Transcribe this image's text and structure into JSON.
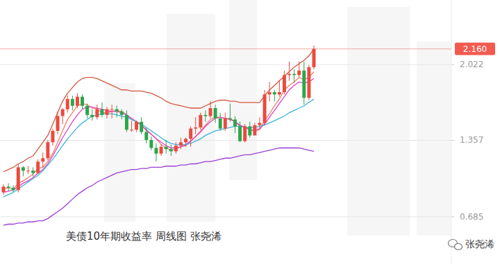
{
  "chart_data": {
    "type": "candlestick",
    "title": "美债10年期收益率 周线图 张尧浠",
    "watermark": "张尧浠",
    "categories": [
      null,
      null,
      null,
      null,
      null,
      null,
      null,
      null,
      null,
      null,
      null,
      null,
      null,
      null,
      null,
      null,
      null,
      null,
      null,
      null,
      null,
      null,
      null,
      null,
      null,
      null,
      null,
      null,
      null,
      null,
      null,
      null,
      null,
      null,
      null,
      null,
      null,
      null,
      null,
      null,
      null,
      null,
      null,
      null,
      null,
      null,
      null,
      null,
      null,
      null,
      null,
      null,
      null,
      null,
      null,
      null,
      null,
      null,
      null,
      null,
      null,
      null,
      null,
      null
    ],
    "open": [
      0.9,
      0.95,
      0.94,
      0.92,
      1.12,
      1.09,
      1.09,
      1.07,
      1.17,
      1.2,
      1.34,
      1.44,
      1.57,
      1.63,
      1.72,
      1.66,
      1.74,
      1.66,
      1.58,
      1.56,
      1.63,
      1.58,
      1.63,
      1.63,
      1.61,
      1.58,
      1.45,
      1.45,
      1.52,
      1.43,
      1.36,
      1.29,
      1.24,
      1.3,
      1.28,
      1.26,
      1.31,
      1.34,
      1.37,
      1.46,
      1.47,
      1.58,
      1.57,
      1.64,
      1.55,
      1.46,
      1.55,
      1.54,
      1.48,
      1.35,
      1.48,
      1.4,
      1.49,
      1.51,
      1.76,
      1.78,
      1.76,
      1.78,
      1.93,
      1.94,
      1.93,
      1.97,
      1.73,
      2.0
    ],
    "high": [
      0.97,
      0.98,
      0.96,
      1.15,
      1.13,
      1.13,
      1.12,
      1.19,
      1.25,
      1.36,
      1.46,
      1.61,
      1.64,
      1.75,
      1.75,
      1.77,
      1.76,
      1.68,
      1.63,
      1.67,
      1.69,
      1.65,
      1.67,
      1.66,
      1.63,
      1.62,
      1.53,
      1.53,
      1.56,
      1.47,
      1.39,
      1.33,
      1.32,
      1.36,
      1.32,
      1.34,
      1.38,
      1.38,
      1.48,
      1.56,
      1.6,
      1.62,
      1.7,
      1.67,
      1.6,
      1.6,
      1.68,
      1.57,
      1.52,
      1.5,
      1.52,
      1.51,
      1.56,
      1.8,
      1.87,
      1.8,
      1.88,
      1.97,
      2.05,
      1.98,
      2.05,
      2.05,
      2.02,
      2.19
    ],
    "low": [
      0.88,
      0.91,
      0.9,
      0.9,
      1.04,
      1.06,
      1.04,
      1.06,
      1.12,
      1.18,
      1.31,
      1.41,
      1.5,
      1.6,
      1.62,
      1.64,
      1.63,
      1.55,
      1.53,
      1.54,
      1.56,
      1.55,
      1.55,
      1.56,
      1.54,
      1.43,
      1.43,
      1.43,
      1.41,
      1.33,
      1.27,
      1.17,
      1.22,
      1.24,
      1.22,
      1.24,
      1.28,
      1.3,
      1.3,
      1.41,
      1.45,
      1.52,
      1.55,
      1.51,
      1.44,
      1.44,
      1.52,
      1.42,
      1.34,
      1.34,
      1.38,
      1.4,
      1.46,
      1.49,
      1.7,
      1.7,
      1.74,
      1.76,
      1.88,
      1.86,
      1.91,
      1.67,
      1.71,
      1.98
    ],
    "close": [
      0.95,
      0.94,
      0.92,
      1.12,
      1.09,
      1.09,
      1.07,
      1.17,
      1.2,
      1.34,
      1.44,
      1.57,
      1.63,
      1.72,
      1.66,
      1.74,
      1.66,
      1.58,
      1.56,
      1.63,
      1.58,
      1.63,
      1.63,
      1.61,
      1.58,
      1.45,
      1.45,
      1.52,
      1.43,
      1.36,
      1.29,
      1.24,
      1.3,
      1.28,
      1.26,
      1.31,
      1.34,
      1.37,
      1.46,
      1.47,
      1.58,
      1.57,
      1.64,
      1.55,
      1.46,
      1.55,
      1.54,
      1.48,
      1.35,
      1.48,
      1.4,
      1.49,
      1.51,
      1.76,
      1.78,
      1.76,
      1.78,
      1.93,
      1.94,
      1.93,
      1.97,
      1.73,
      2.0,
      2.16
    ],
    "series": [
      {
        "type": "line",
        "color": "#d4573f",
        "values": [
          1.08,
          1.1,
          1.12,
          1.15,
          1.17,
          1.2,
          1.22,
          1.28,
          1.34,
          1.4,
          1.5,
          1.6,
          1.7,
          1.77,
          1.82,
          1.87,
          1.9,
          1.91,
          1.91,
          1.9,
          1.88,
          1.86,
          1.84,
          1.82,
          1.8,
          1.8,
          1.79,
          1.79,
          1.79,
          1.78,
          1.77,
          1.75,
          1.73,
          1.7,
          1.68,
          1.67,
          1.66,
          1.65,
          1.64,
          1.64,
          1.64,
          1.66,
          1.68,
          1.7,
          1.71,
          1.71,
          1.7,
          1.7,
          1.69,
          1.69,
          1.69,
          1.69,
          1.69,
          1.75,
          1.8,
          1.84,
          1.88,
          1.92,
          1.96,
          2.0,
          2.03,
          2.06,
          2.1,
          2.16
        ]
      },
      {
        "type": "line",
        "color": "#f27d6c",
        "values": [
          0.93,
          0.94,
          0.93,
          0.98,
          1.0,
          1.03,
          1.06,
          1.11,
          1.12,
          1.17,
          1.24,
          1.34,
          1.44,
          1.54,
          1.6,
          1.66,
          1.68,
          1.67,
          1.64,
          1.63,
          1.6,
          1.6,
          1.61,
          1.62,
          1.61,
          1.58,
          1.54,
          1.52,
          1.49,
          1.44,
          1.41,
          1.37,
          1.32,
          1.29,
          1.27,
          1.28,
          1.3,
          1.31,
          1.35,
          1.39,
          1.44,
          1.49,
          1.54,
          1.56,
          1.56,
          1.55,
          1.55,
          1.52,
          1.48,
          1.48,
          1.45,
          1.44,
          1.45,
          1.53,
          1.59,
          1.66,
          1.72,
          1.8,
          1.84,
          1.87,
          1.91,
          1.89,
          1.91,
          1.96
        ]
      },
      {
        "type": "line",
        "color": "#e23fc6",
        "values": [
          0.9,
          0.91,
          0.92,
          0.95,
          0.98,
          1.0,
          1.03,
          1.07,
          1.1,
          1.15,
          1.22,
          1.3,
          1.38,
          1.45,
          1.52,
          1.58,
          1.63,
          1.65,
          1.65,
          1.64,
          1.63,
          1.62,
          1.61,
          1.61,
          1.6,
          1.58,
          1.55,
          1.52,
          1.49,
          1.45,
          1.41,
          1.37,
          1.34,
          1.31,
          1.29,
          1.29,
          1.3,
          1.32,
          1.35,
          1.39,
          1.43,
          1.48,
          1.52,
          1.55,
          1.56,
          1.55,
          1.54,
          1.52,
          1.49,
          1.47,
          1.45,
          1.44,
          1.46,
          1.5,
          1.56,
          1.62,
          1.68,
          1.74,
          1.8,
          1.84,
          1.87,
          1.86,
          1.87,
          1.9
        ]
      },
      {
        "type": "line",
        "color": "#3bb4df",
        "values": [
          0.86,
          0.88,
          0.9,
          0.93,
          0.96,
          0.99,
          1.02,
          1.05,
          1.09,
          1.14,
          1.19,
          1.25,
          1.31,
          1.37,
          1.42,
          1.47,
          1.51,
          1.54,
          1.57,
          1.58,
          1.59,
          1.59,
          1.59,
          1.58,
          1.57,
          1.56,
          1.54,
          1.52,
          1.5,
          1.47,
          1.44,
          1.41,
          1.38,
          1.35,
          1.33,
          1.32,
          1.32,
          1.32,
          1.33,
          1.35,
          1.37,
          1.4,
          1.42,
          1.44,
          1.45,
          1.46,
          1.47,
          1.48,
          1.48,
          1.47,
          1.47,
          1.47,
          1.48,
          1.49,
          1.51,
          1.53,
          1.55,
          1.57,
          1.6,
          1.62,
          1.64,
          1.66,
          1.69,
          1.72
        ]
      },
      {
        "type": "line",
        "color": "#9a3fd6",
        "values": [
          0.61,
          0.62,
          0.62,
          0.63,
          0.63,
          0.64,
          0.64,
          0.65,
          0.65,
          0.67,
          0.7,
          0.73,
          0.76,
          0.8,
          0.84,
          0.88,
          0.91,
          0.94,
          0.96,
          0.99,
          1.01,
          1.03,
          1.05,
          1.07,
          1.08,
          1.09,
          1.1,
          1.1,
          1.11,
          1.11,
          1.12,
          1.12,
          1.12,
          1.13,
          1.13,
          1.13,
          1.14,
          1.14,
          1.15,
          1.15,
          1.16,
          1.17,
          1.17,
          1.18,
          1.19,
          1.2,
          1.2,
          1.21,
          1.22,
          1.23,
          1.23,
          1.24,
          1.25,
          1.26,
          1.27,
          1.28,
          1.29,
          1.29,
          1.29,
          1.29,
          1.29,
          1.28,
          1.27,
          1.26
        ]
      }
    ],
    "last_value": {
      "value": 2.16,
      "label": "2.160"
    },
    "ylim": [
      0.27,
      2.59
    ],
    "yticks": [
      0.685,
      1.357,
      2.022
    ],
    "grid": true
  }
}
